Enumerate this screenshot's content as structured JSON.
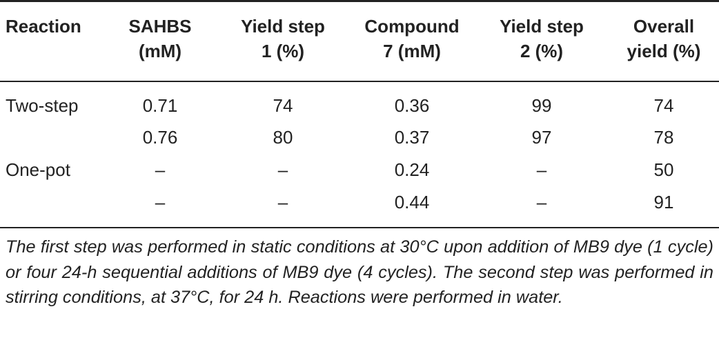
{
  "table": {
    "headers": [
      [
        "Reaction"
      ],
      [
        "SAHBS",
        "(mM)"
      ],
      [
        "Yield step",
        "1 (%)"
      ],
      [
        "Compound",
        "7 (mM)"
      ],
      [
        "Yield step",
        "2 (%)"
      ],
      [
        "Overall",
        "yield (%)"
      ]
    ],
    "rows": [
      [
        "Two-step",
        "0.71",
        "74",
        "0.36",
        "99",
        "74"
      ],
      [
        "",
        "0.76",
        "80",
        "0.37",
        "97",
        "78"
      ],
      [
        "One-pot",
        "–",
        "–",
        "0.24",
        "–",
        "50"
      ],
      [
        "",
        "–",
        "–",
        "0.44",
        "–",
        "91"
      ]
    ]
  },
  "footnote": "The first step was performed in static conditions at 30°C upon addition of MB9 dye (1 cycle) or four 24-h sequential additions of MB9 dye (4 cycles). The second step was performed in stirring conditions, at 37°C, for 24 h. Reactions were performed in water."
}
